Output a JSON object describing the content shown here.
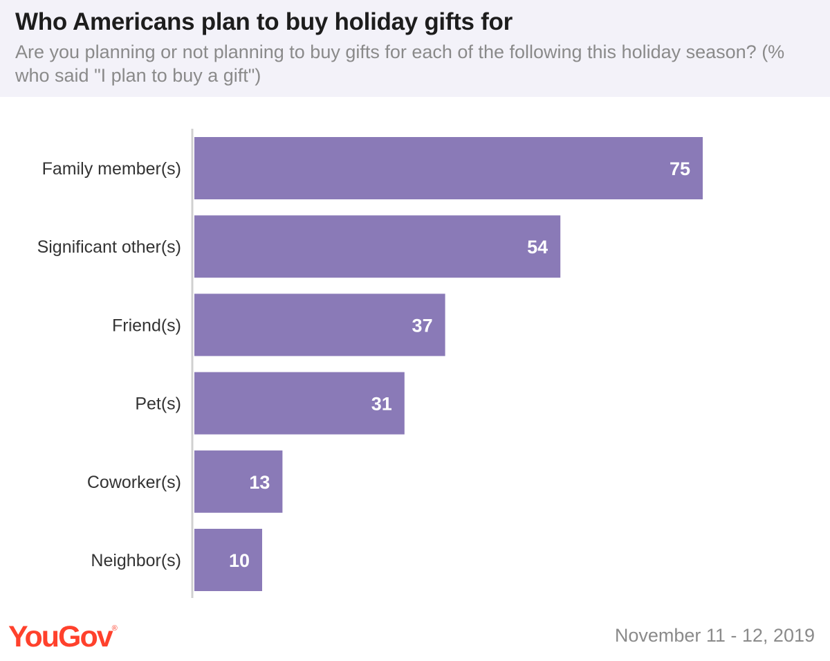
{
  "header": {
    "title": "Who Americans plan to buy holiday gifts for",
    "subtitle": "Are you planning or not planning to buy gifts for each of the following this holiday season? (% who said \"I plan to buy a gift\")"
  },
  "footer": {
    "logo_text": "YouGov",
    "date": "November 11 - 12, 2019"
  },
  "colors": {
    "bar": "#8a7ab7",
    "header_bg": "#f3f2f9",
    "logo": "#ff412c",
    "axis": "#d0d0d0"
  },
  "chart_data": {
    "type": "bar",
    "orientation": "horizontal",
    "title": "Who Americans plan to buy holiday gifts for",
    "subtitle": "Are you planning or not planning to buy gifts for each of the following this holiday season? (% who said \"I plan to buy a gift\")",
    "categories": [
      "Family member(s)",
      "Significant other(s)",
      "Friend(s)",
      "Pet(s)",
      "Coworker(s)",
      "Neighbor(s)"
    ],
    "values": [
      75,
      54,
      37,
      31,
      13,
      10
    ],
    "data_labels": [
      "75",
      "54",
      "37",
      "31",
      "13",
      "10"
    ],
    "xlim": [
      0,
      100
    ],
    "grid": false,
    "legend": "none"
  }
}
